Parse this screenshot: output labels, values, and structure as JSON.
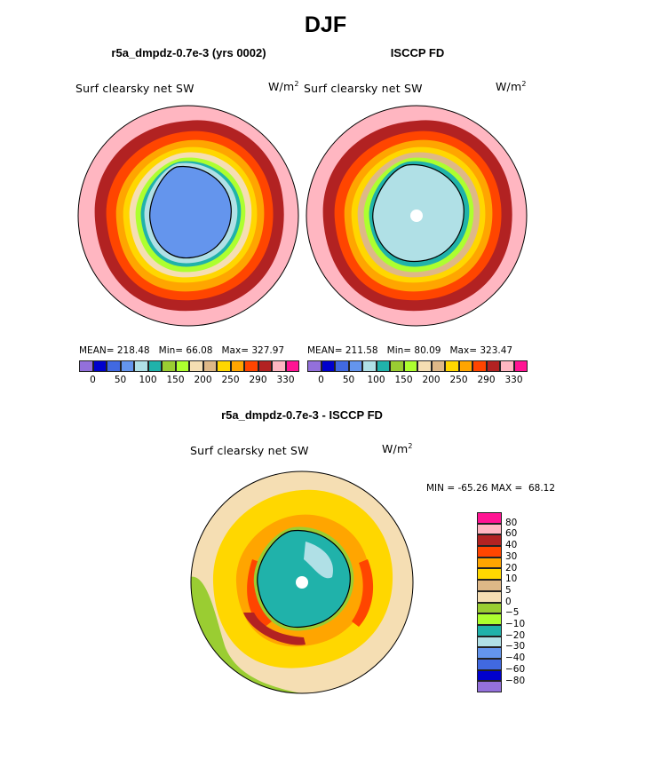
{
  "title": "DJF",
  "chart_data": [
    {
      "type": "heatmap",
      "projection": "south-polar stereographic",
      "title": "r5a_dmpdz-0.7e-3 (yrs 0002)",
      "field_label": "Surf clearsky net SW",
      "units": "W/m",
      "units_exp": "2",
      "stats": {
        "mean_label": "MEAN=",
        "mean": "218.48",
        "min_label": "Min=",
        "min": "66.08",
        "max_label": "Max=",
        "max": "327.97"
      },
      "levels": [
        "0",
        "50",
        "100",
        "150",
        "200",
        "250",
        "290",
        "330"
      ],
      "colorbar": [
        "#9370db",
        "#0000cd",
        "#4169e1",
        "#6495ed",
        "#b0e0e6",
        "#20b2aa",
        "#9acd32",
        "#adff2f",
        "#f5deb3",
        "#deb887",
        "#ffd700",
        "#ffa500",
        "#ff4500",
        "#b22222",
        "#ffb6c1",
        "#ff1493"
      ]
    },
    {
      "type": "heatmap",
      "projection": "south-polar stereographic",
      "title": "ISCCP FD",
      "field_label": "Surf clearsky net SW",
      "units": "W/m",
      "units_exp": "2",
      "stats": {
        "mean_label": "MEAN=",
        "mean": "211.58",
        "min_label": "Min=",
        "min": "80.09",
        "max_label": "Max=",
        "max": "323.47"
      },
      "levels": [
        "0",
        "50",
        "100",
        "150",
        "200",
        "250",
        "290",
        "330"
      ],
      "colorbar": [
        "#9370db",
        "#0000cd",
        "#4169e1",
        "#6495ed",
        "#b0e0e6",
        "#20b2aa",
        "#9acd32",
        "#adff2f",
        "#f5deb3",
        "#deb887",
        "#ffd700",
        "#ffa500",
        "#ff4500",
        "#b22222",
        "#ffb6c1",
        "#ff1493"
      ]
    },
    {
      "type": "heatmap",
      "projection": "south-polar stereographic",
      "title": "r5a_dmpdz-0.7e-3 - ISCCP FD",
      "field_label": "Surf clearsky net SW",
      "units": "W/m",
      "units_exp": "2",
      "minmax": {
        "min_label": "MIN =",
        "min": "-65.26",
        "max_label": "MAX =",
        "max": "68.12"
      },
      "levels": [
        "80",
        "60",
        "40",
        "30",
        "20",
        "10",
        "5",
        "0",
        "−5",
        "−10",
        "−20",
        "−30",
        "−40",
        "−60",
        "−80"
      ],
      "colorbar": [
        "#ff1493",
        "#ffb6c1",
        "#b22222",
        "#ff4500",
        "#ffa500",
        "#ffd700",
        "#deb887",
        "#f5deb3",
        "#9acd32",
        "#adff2f",
        "#20b2aa",
        "#b0e0e6",
        "#6495ed",
        "#4169e1",
        "#0000cd",
        "#9370db"
      ]
    }
  ]
}
